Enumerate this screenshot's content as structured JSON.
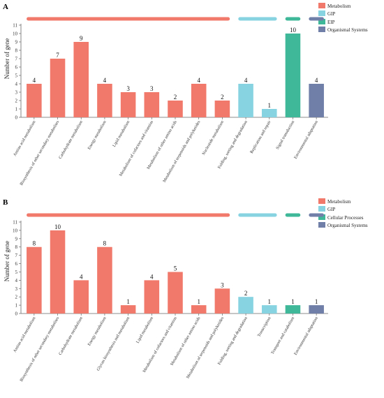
{
  "panels": [
    {
      "letter": "A",
      "ylabel": "Number of gene",
      "ylim": [
        0,
        11
      ],
      "legend": [
        {
          "label": "Metabolism",
          "color": "#f0796b"
        },
        {
          "label": "GIP",
          "color": "#87d3e2"
        },
        {
          "label": "EIP",
          "color": "#3fb899"
        },
        {
          "label": "Organismal Systems",
          "color": "#6f7fa8"
        }
      ]
    },
    {
      "letter": "B",
      "ylabel": "Number of gene",
      "ylim": [
        0,
        11
      ],
      "legend": [
        {
          "label": "Metabolism",
          "color": "#f0796b"
        },
        {
          "label": "GIP",
          "color": "#87d3e2"
        },
        {
          "label": "Cellular Processes",
          "color": "#3fb899"
        },
        {
          "label": "Organismal Systems",
          "color": "#6f7fa8"
        }
      ]
    }
  ],
  "chart_data": [
    {
      "type": "bar",
      "title": "A",
      "xlabel": "",
      "ylabel": "Number of gene",
      "ylim": [
        0,
        11
      ],
      "yticks": [
        0,
        1,
        2,
        3,
        4,
        5,
        6,
        7,
        8,
        9,
        10,
        11
      ],
      "legend_position": "top-right",
      "categories": [
        "Amino acid metabolism",
        "Biosynthesis of other secondary metabolites",
        "Carbohydrate metabolism",
        "Energy metabolism",
        "Lipid metabolism",
        "Metabolism of cofactors and vitamins",
        "Metabolism of other amino acids",
        "Metabolism of terpenoids and polyketides",
        "Nucleotide metabolism",
        "Folding, sorting and degradation",
        "Replication and repair",
        "Signal transduction",
        "Environmental adaptation"
      ],
      "values": [
        4,
        7,
        9,
        4,
        3,
        3,
        2,
        4,
        2,
        4,
        1,
        10,
        4
      ],
      "groups": [
        "Metabolism",
        "Metabolism",
        "Metabolism",
        "Metabolism",
        "Metabolism",
        "Metabolism",
        "Metabolism",
        "Metabolism",
        "Metabolism",
        "GIP",
        "GIP",
        "EIP",
        "Organismal Systems"
      ],
      "group_colors": {
        "Metabolism": "#f0796b",
        "GIP": "#87d3e2",
        "EIP": "#3fb899",
        "Organismal Systems": "#6f7fa8"
      }
    },
    {
      "type": "bar",
      "title": "B",
      "xlabel": "",
      "ylabel": "Number of gene",
      "ylim": [
        0,
        11
      ],
      "yticks": [
        0,
        1,
        2,
        3,
        4,
        5,
        6,
        7,
        8,
        9,
        10,
        11
      ],
      "legend_position": "top-right",
      "categories": [
        "Amino acid metabolism",
        "Biosynthesis of other secondary metabolites",
        "Carbohydrate metabolism",
        "Energy metabolism",
        "Glycan biosynthesis and metabolism",
        "Lipid metabolism",
        "Metabolism of cofactors and vitamins",
        "Metabolism of other amino acids",
        "Metabolism of terpenoids and polyketides",
        "Folding, sorting and degradation",
        "Transcription",
        "Transport and catabolism",
        "Environmental adaptation"
      ],
      "values": [
        8,
        10,
        4,
        8,
        1,
        4,
        5,
        1,
        3,
        2,
        1,
        1,
        1
      ],
      "groups": [
        "Metabolism",
        "Metabolism",
        "Metabolism",
        "Metabolism",
        "Metabolism",
        "Metabolism",
        "Metabolism",
        "Metabolism",
        "Metabolism",
        "GIP",
        "GIP",
        "Cellular Processes",
        "Organismal Systems"
      ],
      "group_colors": {
        "Metabolism": "#f0796b",
        "GIP": "#87d3e2",
        "Cellular Processes": "#3fb899",
        "Organismal Systems": "#6f7fa8"
      }
    }
  ]
}
